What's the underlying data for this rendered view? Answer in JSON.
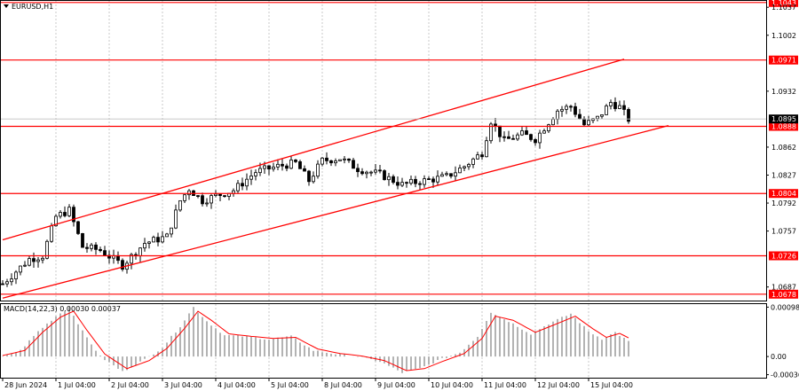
{
  "window": {
    "symbol_label": "EURUSD,H1",
    "menu_icon": "triangle-down-icon"
  },
  "colors": {
    "background": "#ffffff",
    "axis": "#000000",
    "grid": "#c8c8c8",
    "candle": "#000000",
    "level_line": "#ff0000",
    "channel_line": "#ff0000",
    "macd_hist": "#a0a0a0",
    "macd_signal": "#ff0000",
    "current_tag": "#000000"
  },
  "chart_data": {
    "type": "candlestick",
    "title": "EURUSD,H1",
    "price_axis": {
      "ticks": [
        1.1043,
        1.1037,
        1.1002,
        1.0971,
        1.0932,
        1.0895,
        1.0888,
        1.0862,
        1.0827,
        1.0804,
        1.0792,
        1.0757,
        1.0726,
        1.0687,
        1.0678
      ],
      "range": [
        1.067,
        1.1045
      ]
    },
    "time_axis": {
      "labels": [
        "28 Jun 2024",
        "1 Jul 04:00",
        "2 Jul 04:00",
        "3 Jul 04:00",
        "4 Jul 04:00",
        "5 Jul 04:00",
        "8 Jul 04:00",
        "9 Jul 04:00",
        "10 Jul 04:00",
        "11 Jul 04:00",
        "12 Jul 04:00",
        "15 Jul 04:00"
      ]
    },
    "levels": [
      {
        "value": 1.1043,
        "label": "1.1043"
      },
      {
        "value": 1.0971,
        "label": "1.0971"
      },
      {
        "value": 1.0888,
        "label": "1.0888"
      },
      {
        "value": 1.0804,
        "label": "1.0804"
      },
      {
        "value": 1.0726,
        "label": "1.0726"
      },
      {
        "value": 1.0678,
        "label": "1.0678"
      }
    ],
    "current_price": {
      "value": 1.0895,
      "label": "1.0895"
    },
    "channel": {
      "upper": {
        "from": [
          0,
          1.0746
        ],
        "to": [
          140,
          1.0972
        ]
      },
      "lower": {
        "from": [
          0,
          1.0673
        ],
        "to": [
          150,
          1.0889
        ]
      }
    },
    "close_path": [
      [
        0,
        1.0691
      ],
      [
        6,
        1.0722
      ],
      [
        9,
        1.0726
      ],
      [
        12,
        1.0775
      ],
      [
        15,
        1.0783
      ],
      [
        18,
        1.0737
      ],
      [
        22,
        1.0733
      ],
      [
        27,
        1.0714
      ],
      [
        32,
        1.0742
      ],
      [
        37,
        1.075
      ],
      [
        40,
        1.0795
      ],
      [
        42,
        1.081
      ],
      [
        45,
        1.0795
      ],
      [
        48,
        1.0801
      ],
      [
        52,
        1.0808
      ],
      [
        57,
        1.0831
      ],
      [
        62,
        1.0838
      ],
      [
        66,
        1.0842
      ],
      [
        69,
        1.082
      ],
      [
        72,
        1.0845
      ],
      [
        76,
        1.0848
      ],
      [
        80,
        1.0835
      ],
      [
        85,
        1.0828
      ],
      [
        90,
        1.0815
      ],
      [
        95,
        1.082
      ],
      [
        100,
        1.0825
      ],
      [
        104,
        1.0838
      ],
      [
        108,
        1.0855
      ],
      [
        110,
        1.0895
      ],
      [
        113,
        1.087
      ],
      [
        117,
        1.0878
      ],
      [
        120,
        1.0872
      ],
      [
        125,
        1.0908
      ],
      [
        128,
        1.0913
      ],
      [
        131,
        1.089
      ],
      [
        134,
        1.0898
      ],
      [
        137,
        1.0918
      ],
      [
        139,
        1.0912
      ],
      [
        141,
        1.0897
      ]
    ],
    "macd": {
      "label": "MACD(14,22,3) 0.00030 0.00037",
      "axis_ticks": [
        0.00098,
        0.0,
        -0.00036
      ],
      "range": [
        -0.00042,
        0.00104
      ],
      "hist_path": [
        [
          0,
          0.0
        ],
        [
          4,
          0.00012
        ],
        [
          8,
          0.0005
        ],
        [
          12,
          0.0008
        ],
        [
          15,
          0.00098
        ],
        [
          18,
          0.0005
        ],
        [
          22,
          0.0
        ],
        [
          27,
          -0.0003
        ],
        [
          32,
          -6e-05
        ],
        [
          36,
          0.00018
        ],
        [
          40,
          0.0006
        ],
        [
          43,
          0.00098
        ],
        [
          46,
          0.0007
        ],
        [
          50,
          0.00042
        ],
        [
          55,
          0.0004
        ],
        [
          60,
          0.00034
        ],
        [
          65,
          0.0004
        ],
        [
          70,
          0.00012
        ],
        [
          75,
          5e-05
        ],
        [
          80,
          0.0
        ],
        [
          85,
          -0.0001
        ],
        [
          90,
          -0.00032
        ],
        [
          94,
          -0.00024
        ],
        [
          98,
          -8e-05
        ],
        [
          103,
          8e-05
        ],
        [
          107,
          0.0004
        ],
        [
          110,
          0.00088
        ],
        [
          114,
          0.0007
        ],
        [
          119,
          0.00045
        ],
        [
          123,
          0.00065
        ],
        [
          128,
          0.00085
        ],
        [
          132,
          0.0005
        ],
        [
          135,
          0.00035
        ],
        [
          138,
          0.00048
        ],
        [
          141,
          0.0003
        ]
      ],
      "signal_path": [
        [
          0,
          2e-05
        ],
        [
          5,
          0.00012
        ],
        [
          9,
          0.00048
        ],
        [
          13,
          0.00078
        ],
        [
          16,
          0.0009
        ],
        [
          19,
          0.00052
        ],
        [
          23,
          5e-05
        ],
        [
          28,
          -0.00024
        ],
        [
          33,
          -8e-05
        ],
        [
          37,
          0.00016
        ],
        [
          41,
          0.00056
        ],
        [
          44,
          0.0009
        ],
        [
          47,
          0.00072
        ],
        [
          51,
          0.00045
        ],
        [
          56,
          0.0004
        ],
        [
          61,
          0.00036
        ],
        [
          66,
          0.00038
        ],
        [
          71,
          0.00015
        ],
        [
          76,
          6e-05
        ],
        [
          81,
          1e-05
        ],
        [
          86,
          -8e-05
        ],
        [
          91,
          -0.00028
        ],
        [
          95,
          -0.00024
        ],
        [
          99,
          -0.0001
        ],
        [
          104,
          6e-05
        ],
        [
          108,
          0.00036
        ],
        [
          111,
          0.0008
        ],
        [
          115,
          0.00072
        ],
        [
          120,
          0.00048
        ],
        [
          124,
          0.00062
        ],
        [
          129,
          0.0008
        ],
        [
          133,
          0.00055
        ],
        [
          136,
          0.00038
        ],
        [
          139,
          0.00046
        ],
        [
          141,
          0.00037
        ]
      ]
    }
  }
}
